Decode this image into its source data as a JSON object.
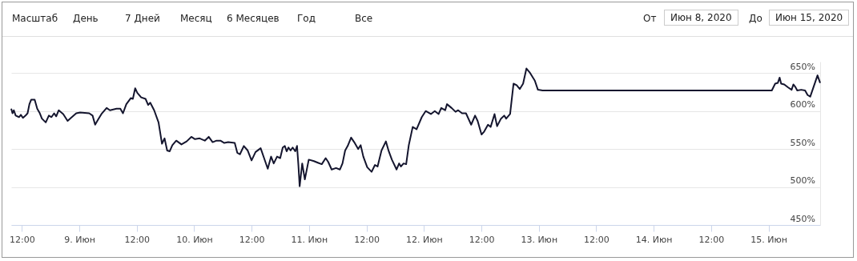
{
  "chart_data": {
    "type": "line",
    "annotations": [
      "Масштаб",
      "День",
      "7 Дней",
      "Месяц",
      "6 Месяцев",
      "Год",
      "Все",
      "От",
      "Июн 8, 2020",
      "До",
      "Июн 15, 2020"
    ],
    "x": [
      "2020-06-08T09:46",
      "2020-06-08T10:02",
      "2020-06-08T10:19",
      "2020-06-08T10:42",
      "2020-06-08T11:24",
      "2020-06-08T11:47",
      "2020-06-08T12:13",
      "2020-06-08T12:46",
      "2020-06-08T13:11",
      "2020-06-08T13:34",
      "2020-06-08T13:57",
      "2020-06-08T14:40",
      "2020-06-08T15:12",
      "2020-06-08T15:45",
      "2020-06-08T16:11",
      "2020-06-08T16:59",
      "2020-06-08T17:38",
      "2020-06-08T18:11",
      "2020-06-08T18:44",
      "2020-06-08T19:10",
      "2020-06-08T19:42",
      "2020-06-08T20:38",
      "2020-06-08T21:33",
      "2020-06-08T22:15",
      "2020-06-08T23:21",
      "2020-06-09T00:10",
      "2020-06-09T02:04",
      "2020-06-09T02:46",
      "2020-06-09T03:18",
      "2020-06-09T03:57",
      "2020-06-09T04:37",
      "2020-06-09T05:42",
      "2020-06-09T06:24",
      "2020-06-09T07:46",
      "2020-06-09T08:34",
      "2020-06-09T09:07",
      "2020-06-09T09:49",
      "2020-06-09T10:45",
      "2020-06-09T11:11",
      "2020-06-09T11:40",
      "2020-06-09T12:06",
      "2020-06-09T12:55",
      "2020-06-09T13:50",
      "2020-06-09T14:23",
      "2020-06-09T14:49",
      "2020-06-09T15:38",
      "2020-06-09T16:33",
      "2020-06-09T17:16",
      "2020-06-09T17:48",
      "2020-06-09T18:21",
      "2020-06-09T18:53",
      "2020-06-09T19:26",
      "2020-06-09T20:15",
      "2020-06-09T21:20",
      "2020-06-09T22:25",
      "2020-06-09T23:24",
      "2020-06-10T00:10",
      "2020-06-10T01:08",
      "2020-06-10T02:13",
      "2020-06-10T03:02",
      "2020-06-10T03:51",
      "2020-06-10T04:40",
      "2020-06-10T05:29",
      "2020-06-10T06:17",
      "2020-06-10T07:06",
      "2020-06-10T08:28",
      "2020-06-10T09:00",
      "2020-06-10T09:33",
      "2020-06-10T10:22",
      "2020-06-10T11:11",
      "2020-06-10T11:59",
      "2020-06-10T12:49",
      "2020-06-10T13:53",
      "2020-06-10T14:36",
      "2020-06-10T15:22",
      "2020-06-10T16:04",
      "2020-06-10T16:37",
      "2020-06-10T17:19",
      "2020-06-10T17:58",
      "2020-06-10T18:30",
      "2020-06-10T18:56",
      "2020-06-10T19:19",
      "2020-06-10T19:42",
      "2020-06-10T20:08",
      "2020-06-10T20:34",
      "2020-06-10T21:07",
      "2020-06-10T21:29",
      "2020-06-10T21:46",
      "2020-06-10T22:02",
      "2020-06-10T22:34",
      "2020-06-10T23:07",
      "2020-06-10T23:56",
      "2020-06-11T01:01",
      "2020-06-11T01:50",
      "2020-06-11T02:39",
      "2020-06-11T03:28",
      "2020-06-11T04:00",
      "2020-06-11T04:43",
      "2020-06-11T05:38",
      "2020-06-11T06:27",
      "2020-06-11T06:59",
      "2020-06-11T07:32",
      "2020-06-11T08:04",
      "2020-06-11T08:47",
      "2020-06-11T09:26",
      "2020-06-11T10:15",
      "2020-06-11T10:47",
      "2020-06-11T11:20",
      "2020-06-11T12:09",
      "2020-06-11T13:04",
      "2020-06-11T13:46",
      "2020-06-11T14:19",
      "2020-06-11T15:08",
      "2020-06-11T16:03",
      "2020-06-11T16:39",
      "2020-06-11T17:18",
      "2020-06-11T18:17",
      "2020-06-11T18:49",
      "2020-06-11T19:12",
      "2020-06-11T19:45",
      "2020-06-11T20:17",
      "2020-06-11T20:50",
      "2020-06-11T21:39",
      "2020-06-11T22:28",
      "2020-06-11T23:33",
      "2020-06-12T00:22",
      "2020-06-12T01:27",
      "2020-06-12T02:16",
      "2020-06-12T03:04",
      "2020-06-12T03:37",
      "2020-06-12T04:26",
      "2020-06-12T04:49",
      "2020-06-12T05:47",
      "2020-06-12T06:36",
      "2020-06-12T07:09",
      "2020-06-12T07:58",
      "2020-06-12T08:47",
      "2020-06-12T09:52",
      "2020-06-12T10:41",
      "2020-06-12T11:13",
      "2020-06-12T12:02",
      "2020-06-12T12:35",
      "2020-06-12T13:23",
      "2020-06-12T13:56",
      "2020-06-12T14:45",
      "2020-06-12T15:17",
      "2020-06-12T16:06",
      "2020-06-12T16:46",
      "2020-06-12T17:11",
      "2020-06-12T18:00",
      "2020-06-12T18:43",
      "2020-06-12T19:22",
      "2020-06-12T20:01",
      "2020-06-12T20:43",
      "2020-06-12T21:25",
      "2020-06-12T22:05",
      "2020-06-12T23:10",
      "2020-06-12T23:49",
      "2020-06-13T00:47",
      "2020-06-15T00:41",
      "2020-06-15T01:23",
      "2020-06-15T01:56",
      "2020-06-15T02:19",
      "2020-06-15T02:38",
      "2020-06-15T03:17",
      "2020-06-15T04:06",
      "2020-06-15T04:49",
      "2020-06-15T05:11",
      "2020-06-15T05:34",
      "2020-06-15T06:00",
      "2020-06-15T06:49",
      "2020-06-15T07:38",
      "2020-06-15T08:10",
      "2020-06-15T08:43",
      "2020-06-15T09:32",
      "2020-06-15T10:14",
      "2020-06-15T10:47"
    ],
    "series": [
      {
        "color": "#14152e",
        "values": [
          603,
          597,
          601,
          594,
          592,
          595,
          591,
          594,
          597,
          609,
          615,
          615,
          603,
          597,
          590,
          585,
          594,
          592,
          597,
          593,
          601,
          596,
          587,
          591,
          597,
          598,
          597,
          594,
          582,
          589,
          596,
          604,
          601,
          603,
          603,
          597,
          609,
          617,
          616,
          630,
          624,
          618,
          616,
          608,
          611,
          601,
          585,
          557,
          564,
          548,
          547,
          555,
          561,
          556,
          560,
          566,
          563,
          564,
          561,
          566,
          559,
          561,
          561,
          558,
          559,
          558,
          545,
          543,
          554,
          548,
          535,
          546,
          551,
          538,
          524,
          540,
          531,
          540,
          538,
          552,
          554,
          547,
          552,
          548,
          552,
          547,
          554,
          529,
          501,
          531,
          510,
          536,
          534,
          532,
          530,
          538,
          533,
          523,
          525,
          523,
          531,
          548,
          554,
          565,
          559,
          550,
          555,
          540,
          526,
          520,
          529,
          527,
          548,
          560,
          547,
          536,
          523,
          531,
          527,
          531,
          530,
          555,
          579,
          576,
          592,
          600,
          596,
          600,
          596,
          604,
          601,
          609,
          604,
          599,
          601,
          597,
          597,
          582,
          594,
          587,
          569,
          573,
          582,
          579,
          596,
          580,
          590,
          594,
          590,
          596,
          636,
          634,
          629,
          636,
          656,
          651,
          640,
          628,
          627,
          627,
          636,
          637,
          644,
          636,
          635,
          631,
          628,
          635,
          632,
          627,
          628,
          627,
          621,
          619,
          634,
          647,
          637
        ]
      }
    ],
    "xlim": [
      "2020-06-08T09:46",
      "2020-06-15T10:47"
    ],
    "xticks": [
      {
        "value": "2020-06-08T12:00",
        "label": "12:00"
      },
      {
        "value": "2020-06-09",
        "label": "9. Июн"
      },
      {
        "value": "2020-06-09T12:00",
        "label": "12:00"
      },
      {
        "value": "2020-06-10",
        "label": "10. Июн"
      },
      {
        "value": "2020-06-10T12:00",
        "label": "12:00"
      },
      {
        "value": "2020-06-11",
        "label": "11. Июн"
      },
      {
        "value": "2020-06-11T12:00",
        "label": "12:00"
      },
      {
        "value": "2020-06-12",
        "label": "12. Июн"
      },
      {
        "value": "2020-06-12T12:00",
        "label": "12:00"
      },
      {
        "value": "2020-06-13",
        "label": "13. Июн"
      },
      {
        "value": "2020-06-13T12:00",
        "label": "12:00"
      },
      {
        "value": "2020-06-14",
        "label": "14. Июн"
      },
      {
        "value": "2020-06-14T12:00",
        "label": "12:00"
      },
      {
        "value": "2020-06-15",
        "label": "15. Июн"
      }
    ],
    "ylim": [
      450,
      665
    ],
    "yticks": [
      {
        "value": 450,
        "label": "450%"
      },
      {
        "value": 500,
        "label": "500%"
      },
      {
        "value": 550,
        "label": "550%"
      },
      {
        "value": 600,
        "label": "600%"
      },
      {
        "value": 650,
        "label": "650%"
      }
    ],
    "grid": "y"
  }
}
